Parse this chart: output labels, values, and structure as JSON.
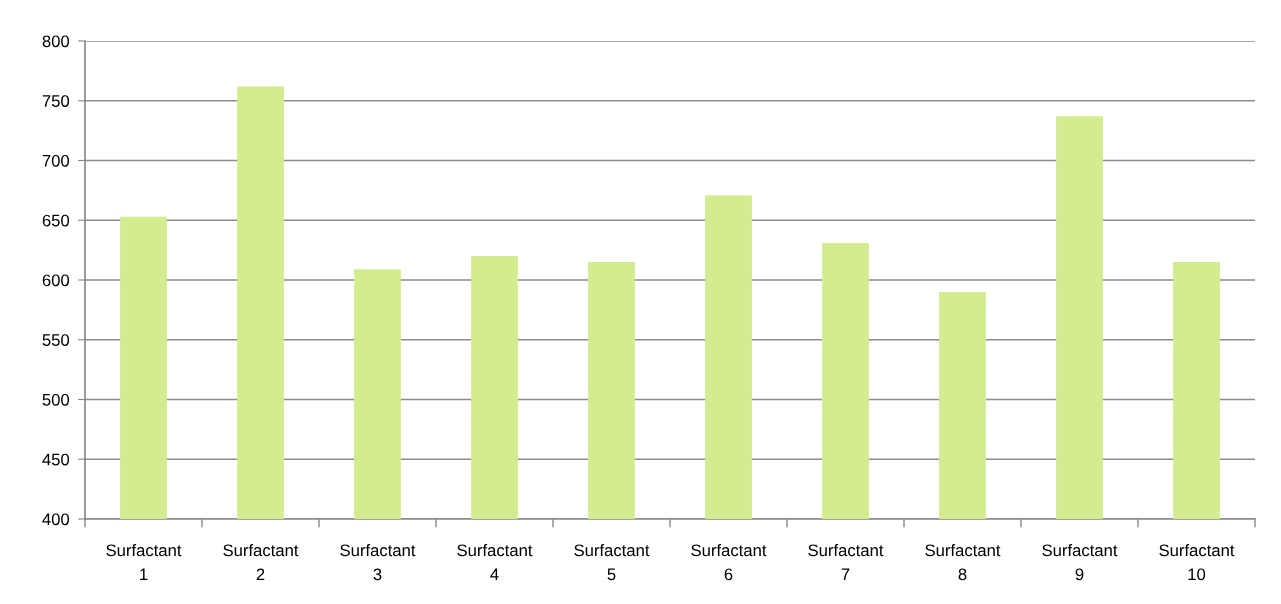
{
  "chart_data": {
    "type": "bar",
    "categories": [
      "Surfactant\n1",
      "Surfactant\n2",
      "Surfactant\n3",
      "Surfactant\n4",
      "Surfactant\n5",
      "Surfactant\n6",
      "Surfactant\n7",
      "Surfactant\n8",
      "Surfactant\n9",
      "Surfactant\n10"
    ],
    "values": [
      653,
      762,
      609,
      620,
      615,
      671,
      631,
      590,
      737,
      615
    ],
    "color": "#d2ec8f",
    "ylim": [
      400,
      800
    ],
    "yticks": [
      400,
      450,
      500,
      550,
      600,
      650,
      700,
      750,
      800
    ],
    "grid": "y"
  }
}
